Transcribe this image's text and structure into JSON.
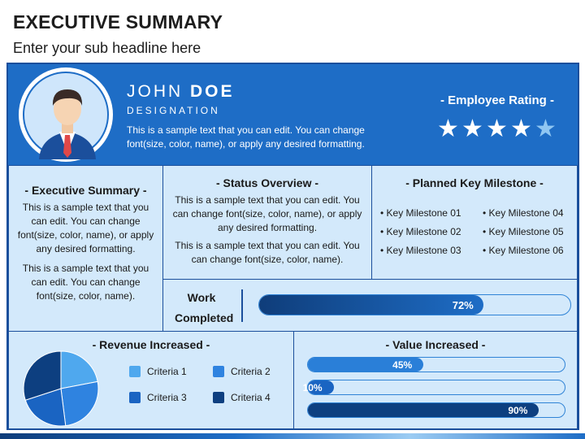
{
  "page": {
    "title": "EXECUTIVE SUMMARY",
    "subtitle": "Enter your sub headline here"
  },
  "profile": {
    "first_name": "JOHN",
    "last_name": "DOE",
    "designation": "DESIGNATION",
    "description": "This is a sample text that you can edit. You can change font(size, color, name), or apply any desired formatting.",
    "avatar_icon": "person-avatar-icon"
  },
  "rating": {
    "title": "- Employee Rating -",
    "value": 4.5,
    "max": 5,
    "star_glyph": "★"
  },
  "executive_summary": {
    "title": "- Executive Summary -",
    "paragraph1": "This is a sample text that you can edit. You can change font(size, color, name), or apply any desired formatting.",
    "paragraph2": "This is a sample text that you can edit. You can change font(size, color, name)."
  },
  "status_overview": {
    "title": "- Status Overview -",
    "paragraph1": "This is a sample text that you can edit. You can change font(size, color, name), or apply any desired formatting.",
    "paragraph2": "This is a sample text that you can edit. You can change font(size, color, name)."
  },
  "planned_milestone": {
    "title": "- Planned Key Milestone -",
    "bullet": "•",
    "items": [
      "Key Milestone 01",
      "Key Milestone 04",
      "Key Milestone 02",
      "Key Milestone 05",
      "Key Milestone 03",
      "Key Milestone 06"
    ]
  },
  "work_completed": {
    "label_line1": "Work",
    "label_line2": "Completed",
    "percent": 72,
    "label": "72%"
  },
  "revenue": {
    "title": "- Revenue Increased -",
    "legend": [
      {
        "label": "Criteria 1",
        "color": "#4fa8ee"
      },
      {
        "label": "Criteria 2",
        "color": "#2f83e0"
      },
      {
        "label": "Criteria 3",
        "color": "#1a64c2"
      },
      {
        "label": "Criteria 4",
        "color": "#0d3f80"
      }
    ]
  },
  "value_increased": {
    "title": "- Value Increased -",
    "bars": [
      {
        "percent": 45,
        "label": "45%",
        "color": "#2a7fd8"
      },
      {
        "percent": 10,
        "label": "10%",
        "color": "#1a64c2"
      },
      {
        "percent": 90,
        "label": "90%",
        "color": "#0d3f80"
      }
    ]
  },
  "chart_data": {
    "type": "pie",
    "categories": [
      "Criteria 1",
      "Criteria 2",
      "Criteria 3",
      "Criteria 4"
    ],
    "values": [
      22,
      26,
      22,
      30
    ],
    "colors": [
      "#4fa8ee",
      "#2f83e0",
      "#1a64c2",
      "#0d3f80"
    ],
    "title": "- Revenue Increased -",
    "legend": "right"
  }
}
